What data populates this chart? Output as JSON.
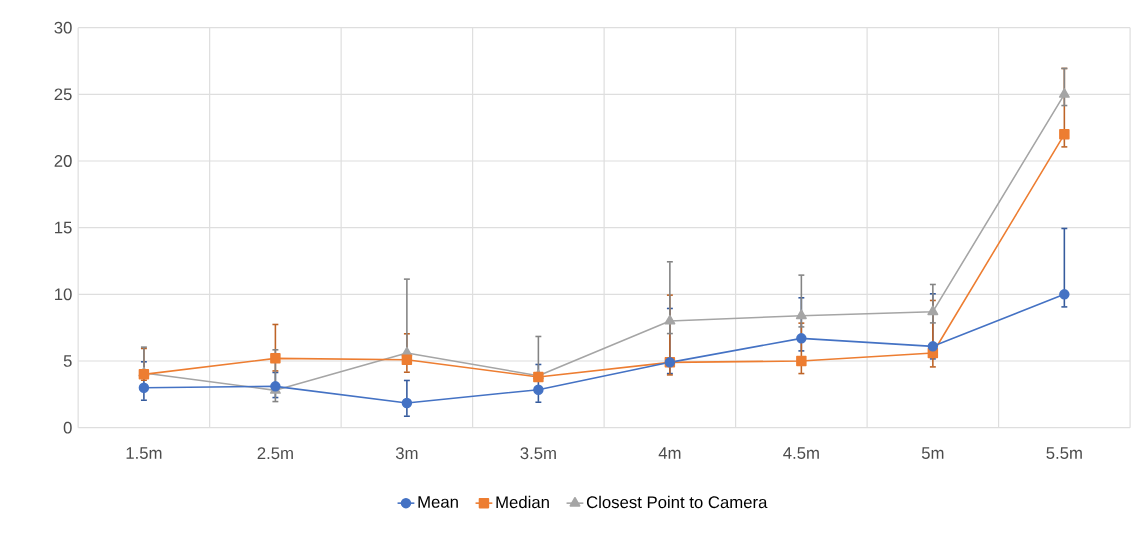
{
  "chart_data": {
    "type": "line",
    "categories": [
      "1.5m",
      "2.5m",
      "3m",
      "3.5m",
      "4m",
      "4.5m",
      "5m",
      "5.5m"
    ],
    "series": [
      {
        "name": "Mean",
        "color": "#4472c4",
        "marker": "circle",
        "values": [
          3.0,
          3.1,
          1.85,
          2.85,
          4.9,
          6.7,
          6.1,
          10
        ],
        "errors": [
          [
            2,
            5
          ],
          [
            2.2,
            4.2
          ],
          [
            0.8,
            3.6
          ],
          [
            1.85,
            4.8
          ],
          [
            4,
            9
          ],
          [
            5.7,
            9.8
          ],
          [
            5.1,
            10.1
          ],
          [
            9,
            15
          ]
        ]
      },
      {
        "name": "Median",
        "color": "#ed7d31",
        "marker": "square",
        "values": [
          4.0,
          5.2,
          5.1,
          3.8,
          4.9,
          5.0,
          5.6,
          22
        ],
        "errors": [
          [
            3.5,
            6
          ],
          [
            4.2,
            7.8
          ],
          [
            4.1,
            7.1
          ],
          null,
          [
            3.9,
            10
          ],
          [
            4,
            7.9
          ],
          [
            4.5,
            9.6
          ],
          [
            21,
            27
          ]
        ]
      },
      {
        "name": "Closest Point to Camera",
        "color": "#a5a5a5",
        "marker": "triangle",
        "values": [
          4.1,
          2.8,
          5.6,
          3.9,
          8.0,
          8.4,
          8.7,
          25
        ],
        "errors": [
          [
            4,
            6.1
          ],
          [
            1.9,
            5.9
          ],
          [
            4.7,
            11.2
          ],
          [
            3.9,
            6.9
          ],
          [
            7,
            12.5
          ],
          [
            7.5,
            11.5
          ],
          [
            7.8,
            10.8
          ],
          [
            24.1,
            27
          ]
        ]
      }
    ],
    "ylim": [
      0,
      30
    ],
    "yticks": [
      0,
      5,
      10,
      15,
      20,
      25,
      30
    ],
    "grid": true,
    "legend": "bottom",
    "line_style": "solid"
  }
}
